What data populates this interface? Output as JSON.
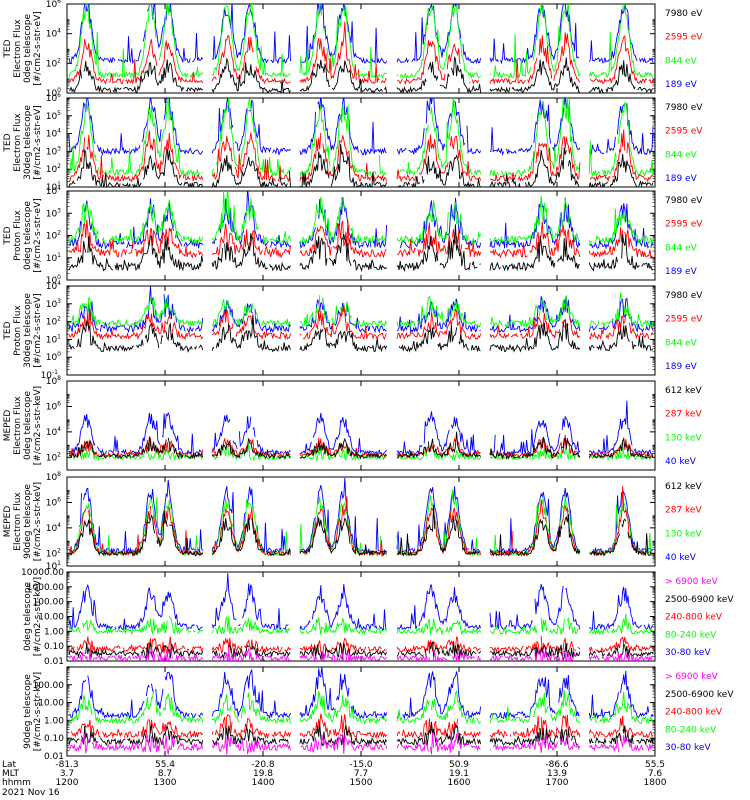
{
  "colors": {
    "blue": "#0000ff",
    "red": "#ff0000",
    "green": "#00ff00",
    "black": "#000000",
    "magenta": "#ff00ff",
    "axis": "#000000"
  },
  "chart_data": [
    {
      "type": "line",
      "ylabel": [
        "TED",
        "Electron Flux",
        "0deg telescope",
        "[#/cm2-s-str-eV]"
      ],
      "log": true,
      "ylim_exp": [
        0,
        6
      ],
      "tick_exps": [
        0,
        2,
        4,
        6
      ],
      "tick_style": "pow",
      "legend": [
        {
          "name": "7980 eV",
          "color": "black"
        },
        {
          "name": "2595 eV",
          "color": "red"
        },
        {
          "name": "844 eV",
          "color": "green"
        },
        {
          "name": "189 eV",
          "color": "blue"
        }
      ],
      "series": [
        {
          "name": "189 eV",
          "color": "blue",
          "base": 2.2,
          "spike": 3.6
        },
        {
          "name": "844 eV",
          "color": "green",
          "base": 1.2,
          "spike": 4.6
        },
        {
          "name": "2595 eV",
          "color": "red",
          "base": 0.8,
          "spike": 2.5
        },
        {
          "name": "7980 eV",
          "color": "black",
          "base": 0.2,
          "spike": 1.6
        }
      ]
    },
    {
      "type": "line",
      "ylabel": [
        "TED",
        "Electron Flux",
        "30deg telescope",
        "[#/cm2-s-str-eV]"
      ],
      "log": true,
      "ylim_exp": [
        1,
        6
      ],
      "tick_exps": [
        1,
        2,
        3,
        4,
        5,
        6
      ],
      "tick_style": "pow",
      "legend": [
        {
          "name": "7980 eV",
          "color": "black"
        },
        {
          "name": "2595 eV",
          "color": "red"
        },
        {
          "name": "844 eV",
          "color": "green"
        },
        {
          "name": "189 eV",
          "color": "blue"
        }
      ],
      "series": [
        {
          "name": "189 eV",
          "color": "blue",
          "base": 3.0,
          "spike": 2.7
        },
        {
          "name": "844 eV",
          "color": "green",
          "base": 1.8,
          "spike": 3.6
        },
        {
          "name": "2595 eV",
          "color": "red",
          "base": 1.5,
          "spike": 2.2
        },
        {
          "name": "7980 eV",
          "color": "black",
          "base": 1.1,
          "spike": 1.4
        }
      ]
    },
    {
      "type": "line",
      "ylabel": [
        "TED",
        "Proton Flux",
        "0deg telescope",
        "[#/cm2-s-str-eV]"
      ],
      "log": true,
      "ylim_exp": [
        0,
        4
      ],
      "tick_exps": [
        0,
        1,
        2,
        3,
        4
      ],
      "tick_style": "pow",
      "legend": [
        {
          "name": "7980 eV",
          "color": "black"
        },
        {
          "name": "2595 eV",
          "color": "red"
        },
        {
          "name": "844 eV",
          "color": "green"
        },
        {
          "name": "189 eV",
          "color": "blue"
        }
      ],
      "series": [
        {
          "name": "189 eV",
          "color": "blue",
          "base": 1.6,
          "spike": 1.6
        },
        {
          "name": "844 eV",
          "color": "green",
          "base": 1.8,
          "spike": 1.4
        },
        {
          "name": "2595 eV",
          "color": "red",
          "base": 1.2,
          "spike": 0.9
        },
        {
          "name": "7980 eV",
          "color": "black",
          "base": 0.6,
          "spike": 0.9
        }
      ]
    },
    {
      "type": "line",
      "ylabel": [
        "TED",
        "Proton Flux",
        "30deg telescope",
        "[#/cm2-s-str-eV]"
      ],
      "log": true,
      "ylim_exp": [
        -1,
        4
      ],
      "tick_exps": [
        -1,
        0,
        1,
        2,
        3,
        4
      ],
      "tick_style": "pow",
      "legend": [
        {
          "name": "7980 eV",
          "color": "black"
        },
        {
          "name": "2595 eV",
          "color": "red"
        },
        {
          "name": "844 eV",
          "color": "green"
        },
        {
          "name": "189 eV",
          "color": "blue"
        }
      ],
      "series": [
        {
          "name": "189 eV",
          "color": "blue",
          "base": 1.6,
          "spike": 1.3
        },
        {
          "name": "844 eV",
          "color": "green",
          "base": 1.9,
          "spike": 1.0
        },
        {
          "name": "2595 eV",
          "color": "red",
          "base": 1.2,
          "spike": 0.9
        },
        {
          "name": "7980 eV",
          "color": "black",
          "base": 0.5,
          "spike": 1.0
        }
      ]
    },
    {
      "type": "line",
      "ylabel": [
        "MEPED",
        "Electron Flux",
        "0deg telescope",
        "[#/cm2-s-str-keV]"
      ],
      "log": true,
      "ylim_exp": [
        1,
        8
      ],
      "tick_exps": [
        2,
        4,
        6,
        8
      ],
      "tick_style": "pow",
      "legend": [
        {
          "name": "612 keV",
          "color": "black"
        },
        {
          "name": "287 keV",
          "color": "red"
        },
        {
          "name": "130 keV",
          "color": "green"
        },
        {
          "name": "40 keV",
          "color": "blue"
        }
      ],
      "series": [
        {
          "name": "40 keV",
          "color": "blue",
          "base": 2.4,
          "spike": 2.6
        },
        {
          "name": "130 keV",
          "color": "green",
          "base": 2.0,
          "spike": 0.4
        },
        {
          "name": "287 keV",
          "color": "red",
          "base": 2.2,
          "spike": 0.8
        },
        {
          "name": "612 keV",
          "color": "black",
          "base": 2.1,
          "spike": 0.9
        }
      ]
    },
    {
      "type": "line",
      "ylabel": [
        "MEPED",
        "Electron Flux",
        "90deg telescope",
        "[#/cm2-s-str-keV]"
      ],
      "log": true,
      "ylim_exp": [
        1,
        8
      ],
      "tick_exps": [
        1,
        2,
        4,
        6,
        8
      ],
      "tick_style": "pow",
      "legend": [
        {
          "name": "612 keV",
          "color": "black"
        },
        {
          "name": "287 keV",
          "color": "red"
        },
        {
          "name": "130 keV",
          "color": "green"
        },
        {
          "name": "40 keV",
          "color": "blue"
        }
      ],
      "series": [
        {
          "name": "40 keV",
          "color": "blue",
          "base": 2.2,
          "spike": 4.6
        },
        {
          "name": "130 keV",
          "color": "green",
          "base": 2.0,
          "spike": 4.0
        },
        {
          "name": "287 keV",
          "color": "red",
          "base": 2.0,
          "spike": 3.2
        },
        {
          "name": "612 keV",
          "color": "black",
          "base": 2.0,
          "spike": 2.4
        }
      ]
    },
    {
      "type": "line",
      "ylabel": [
        "0deg telescope",
        "[#/cm2-s-str-keV]"
      ],
      "log": true,
      "ylim_exp": [
        -2,
        4
      ],
      "tick_exps": [
        -2,
        -1,
        0,
        1,
        2,
        3,
        4
      ],
      "tick_style": "dec",
      "tick_labels": [
        "0.01",
        "0.10",
        "1.00",
        "10.00",
        "100.00",
        "1000.00",
        "10000.00"
      ],
      "legend": [
        {
          "name": "> 6900 keV",
          "color": "magenta"
        },
        {
          "name": "2500-6900 keV",
          "color": "black"
        },
        {
          "name": "240-800 keV",
          "color": "red"
        },
        {
          "name": "80-240 keV",
          "color": "green"
        },
        {
          "name": "30-80 keV",
          "color": "blue"
        }
      ],
      "series": [
        {
          "name": "30-80 keV",
          "color": "blue",
          "base": 0.3,
          "spike": 2.3
        },
        {
          "name": "80-240 keV",
          "color": "green",
          "base": 0.0,
          "spike": 0.4
        },
        {
          "name": "240-800 keV",
          "color": "red",
          "base": -1.2,
          "spike": 0.3
        },
        {
          "name": "2500-6900 keV",
          "color": "black",
          "base": -1.5,
          "spike": 0.2
        },
        {
          "name": "> 6900 keV",
          "color": "magenta",
          "base": -1.8,
          "spike": 0.1
        }
      ]
    },
    {
      "type": "line",
      "ylabel": [
        "90deg telescope",
        "[#/cm2-s-str-keV]"
      ],
      "log": true,
      "ylim_exp": [
        -2,
        3
      ],
      "tick_exps": [
        -2,
        -1,
        0,
        1,
        2
      ],
      "tick_style": "dec",
      "tick_labels": [
        "0.01",
        "0.10",
        "1.00",
        "10.00",
        "100.00"
      ],
      "legend": [
        {
          "name": "> 6900 keV",
          "color": "magenta"
        },
        {
          "name": "2500-6900 keV",
          "color": "black"
        },
        {
          "name": "240-800 keV",
          "color": "red"
        },
        {
          "name": "80-240 keV",
          "color": "green"
        },
        {
          "name": "30-80 keV",
          "color": "blue"
        }
      ],
      "series": [
        {
          "name": "30-80 keV",
          "color": "blue",
          "base": 0.3,
          "spike": 2.1
        },
        {
          "name": "80-240 keV",
          "color": "green",
          "base": 0.0,
          "spike": 1.2
        },
        {
          "name": "240-800 keV",
          "color": "red",
          "base": -0.8,
          "spike": 0.6
        },
        {
          "name": "2500-6900 keV",
          "color": "black",
          "base": -1.2,
          "spike": 0.4
        },
        {
          "name": "> 6900 keV",
          "color": "magenta",
          "base": -1.5,
          "spike": 0.2
        }
      ]
    }
  ],
  "xaxis": {
    "row_labels": [
      "Lat",
      "MLT",
      "hhmm"
    ],
    "ticks": [
      {
        "lat": "-81.3",
        "mlt": "3.7",
        "hhmm": "1200"
      },
      {
        "lat": "55.4",
        "mlt": "8.7",
        "hhmm": "1300"
      },
      {
        "lat": "-20.8",
        "mlt": "19.8",
        "hhmm": "1400"
      },
      {
        "lat": "-15.0",
        "mlt": "7.7",
        "hhmm": "1500"
      },
      {
        "lat": "50.9",
        "mlt": "19.1",
        "hhmm": "1600"
      },
      {
        "lat": "-86.6",
        "mlt": "13.9",
        "hhmm": "1700"
      },
      {
        "lat": "55.5",
        "mlt": "7.6",
        "hhmm": "1800"
      }
    ],
    "date": "2021 Nov 16"
  }
}
